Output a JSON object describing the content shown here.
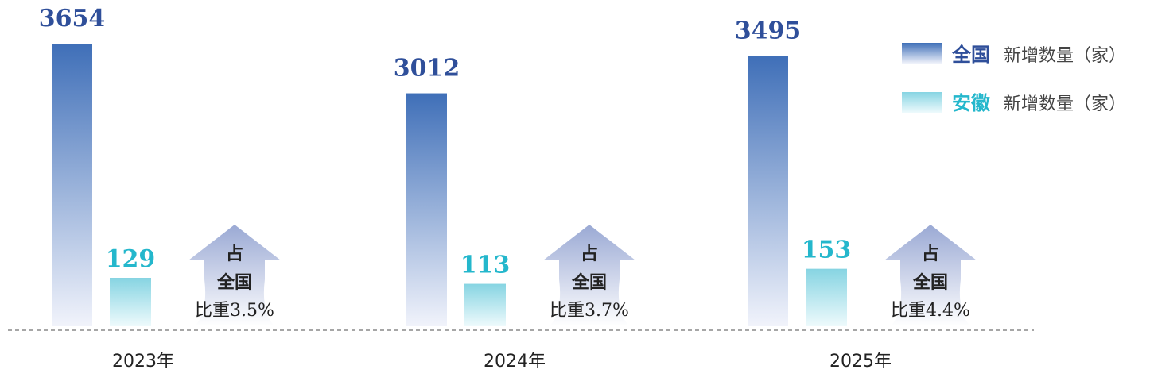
{
  "chart_data": {
    "type": "bar",
    "categories": [
      "2023年",
      "2024年",
      "2025年"
    ],
    "series": [
      {
        "name": "全国",
        "values": [
          3654,
          3012,
          3495
        ]
      },
      {
        "name": "安徽",
        "values": [
          129,
          113,
          153
        ]
      }
    ],
    "value_labels": {
      "national": [
        "3654",
        "3012",
        "3495"
      ],
      "anhui": [
        "129",
        "113",
        "153"
      ]
    },
    "share_labels": [
      {
        "line1": "占",
        "line2": "全国",
        "line3": "比重3.5%"
      },
      {
        "line1": "占",
        "line2": "全国",
        "line3": "比重3.7%"
      },
      {
        "line1": "占",
        "line2": "全国",
        "line3": "比重4.4%"
      }
    ],
    "legend": [
      {
        "name": "全国",
        "desc": "新增数量（家）"
      },
      {
        "name": "安徽",
        "desc": "新增数量（家）"
      }
    ],
    "legend_position": "top-right",
    "title": "",
    "xlabel": "",
    "ylabel": "",
    "grid": false,
    "colors": {
      "national_top": "#3f6fb8",
      "national_bottom": "#f1f3fb",
      "anhui_top": "#86d4e2",
      "anhui_bottom": "#eefafc",
      "national_text": "#2f4f9a",
      "anhui_text": "#24b7cc",
      "arrow_top": "#9aa9d4",
      "arrow_bottom": "#ffffff",
      "baseline": "#888888"
    }
  }
}
